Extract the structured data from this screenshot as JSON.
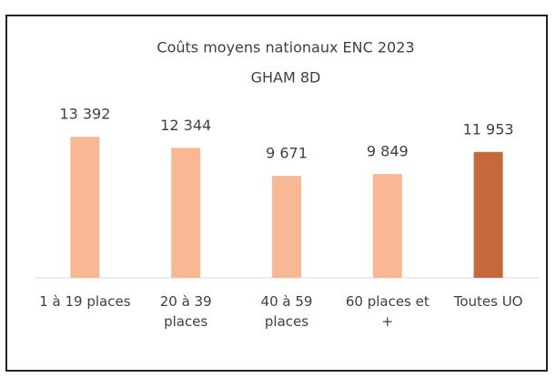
{
  "chart_data": {
    "type": "bar",
    "title": "Coûts moyens nationaux ENC 2023",
    "subtitle": "GHAM 8D",
    "categories": [
      "1 à 19 places",
      "20 à 39 places",
      "40 à 59 places",
      "60 places et +",
      "Toutes UO"
    ],
    "values": [
      13392,
      12344,
      9671,
      9849,
      11953
    ],
    "value_labels": [
      "13 392",
      "12 344",
      "9 671",
      "9 849",
      "11 953"
    ],
    "colors": [
      "#f8b893",
      "#f8b893",
      "#f8b893",
      "#f8b893",
      "#c5683a"
    ],
    "ylim": [
      0,
      16000
    ]
  }
}
